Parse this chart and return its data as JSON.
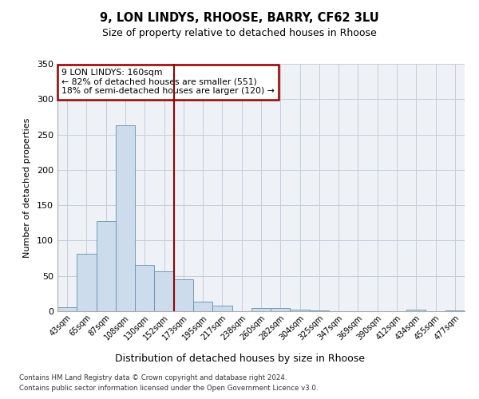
{
  "title1": "9, LON LINDYS, RHOOSE, BARRY, CF62 3LU",
  "title2": "Size of property relative to detached houses in Rhoose",
  "xlabel": "Distribution of detached houses by size in Rhoose",
  "ylabel": "Number of detached properties",
  "bin_labels": [
    "43sqm",
    "65sqm",
    "87sqm",
    "108sqm",
    "130sqm",
    "152sqm",
    "173sqm",
    "195sqm",
    "217sqm",
    "238sqm",
    "260sqm",
    "282sqm",
    "304sqm",
    "325sqm",
    "347sqm",
    "369sqm",
    "390sqm",
    "412sqm",
    "434sqm",
    "455sqm",
    "477sqm"
  ],
  "bar_heights": [
    6,
    81,
    128,
    263,
    65,
    56,
    45,
    14,
    8,
    0,
    5,
    5,
    2,
    1,
    0,
    0,
    0,
    0,
    2,
    0,
    1
  ],
  "bar_color": "#ccdcec",
  "bar_edge_color": "#6090b0",
  "vline_x": 5.5,
  "vline_color": "#990000",
  "annotation_line1": "9 LON LINDYS: 160sqm",
  "annotation_line2": "← 82% of detached houses are smaller (551)",
  "annotation_line3": "18% of semi-detached houses are larger (120) →",
  "annotation_box_color": "#ffffff",
  "annotation_box_edge_color": "#990000",
  "ylim": [
    0,
    350
  ],
  "yticks": [
    0,
    50,
    100,
    150,
    200,
    250,
    300,
    350
  ],
  "footer1": "Contains HM Land Registry data © Crown copyright and database right 2024.",
  "footer2": "Contains public sector information licensed under the Open Government Licence v3.0.",
  "bg_color": "#eef2f7",
  "grid_color": "#c5cdd8"
}
